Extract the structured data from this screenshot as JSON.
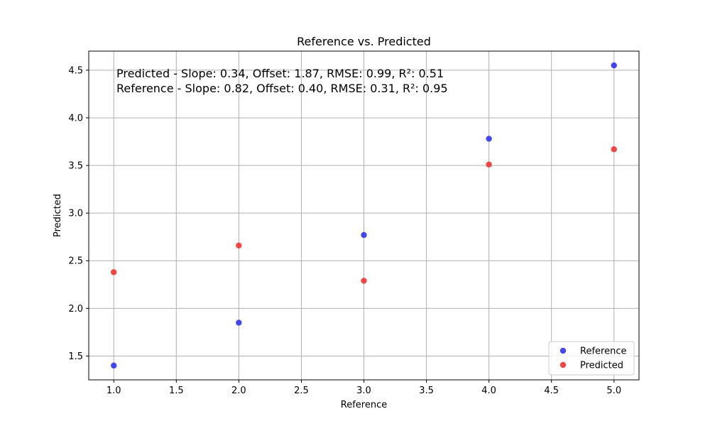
{
  "chart_data": {
    "type": "scatter",
    "title": "Reference vs. Predicted",
    "xlabel": "Reference",
    "ylabel": "Predicted",
    "xlim": [
      0.8,
      5.2
    ],
    "ylim": [
      1.25,
      4.7
    ],
    "xticks": [
      1.0,
      1.5,
      2.0,
      2.5,
      3.0,
      3.5,
      4.0,
      4.5,
      5.0
    ],
    "yticks": [
      1.5,
      2.0,
      2.5,
      3.0,
      3.5,
      4.0,
      4.5
    ],
    "xtick_labels": [
      "1.0",
      "1.5",
      "2.0",
      "2.5",
      "3.0",
      "3.5",
      "4.0",
      "4.5",
      "5.0"
    ],
    "ytick_labels": [
      "1.5",
      "2.0",
      "2.5",
      "3.0",
      "3.5",
      "4.0",
      "4.5"
    ],
    "grid": true,
    "legend_position": "bottom-right",
    "series": [
      {
        "name": "Reference",
        "color": "#3333ee",
        "x": [
          1,
          2,
          3,
          4,
          5
        ],
        "y": [
          1.4,
          1.85,
          2.77,
          3.78,
          4.55
        ]
      },
      {
        "name": "Predicted",
        "color": "#ee3333",
        "x": [
          1,
          2,
          3,
          4,
          5
        ],
        "y": [
          2.38,
          2.66,
          2.29,
          3.51,
          3.67
        ]
      }
    ],
    "annotations": [
      "Predicted - Slope: 0.34, Offset: 1.87, RMSE: 0.99, R²: 0.51",
      "Reference - Slope: 0.82, Offset: 0.40, RMSE: 0.31, R²: 0.95"
    ]
  }
}
